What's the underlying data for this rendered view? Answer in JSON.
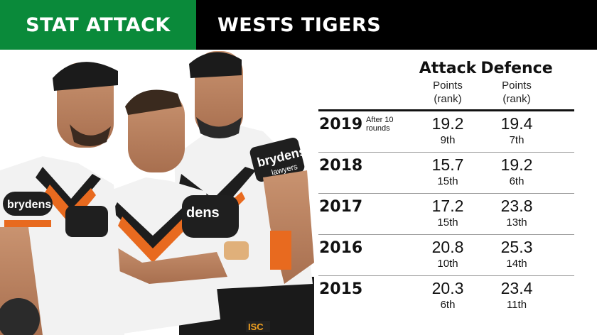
{
  "header": {
    "left_title": "STAT ATTACK",
    "right_title": "WESTS TIGERS",
    "left_color": "#0a8a3a",
    "right_color": "#000000"
  },
  "table": {
    "attack_label": "Attack",
    "attack_sub": "Points",
    "attack_sub2": "(rank)",
    "defence_label": "Defence",
    "defence_sub": "Points",
    "defence_sub2": "(rank)",
    "rows": [
      {
        "year": "2019",
        "note_line1": "After 10",
        "note_line2": "rounds",
        "attack": "19.2",
        "attack_rank": "9th",
        "defence": "19.4",
        "defence_rank": "7th"
      },
      {
        "year": "2018",
        "attack": "15.7",
        "attack_rank": "15th",
        "defence": "19.2",
        "defence_rank": "6th"
      },
      {
        "year": "2017",
        "attack": "17.2",
        "attack_rank": "15th",
        "defence": "23.8",
        "defence_rank": "13th"
      },
      {
        "year": "2016",
        "attack": "20.8",
        "attack_rank": "10th",
        "defence": "25.3",
        "defence_rank": "14th"
      },
      {
        "year": "2015",
        "attack": "20.3",
        "attack_rank": "6th",
        "defence": "23.4",
        "defence_rank": "11th"
      }
    ]
  },
  "photo": {
    "jersey_text": "brydens",
    "jersey_sub": "lawyers",
    "sponsor_alt": "dens",
    "shorts_logo": "ISC"
  }
}
